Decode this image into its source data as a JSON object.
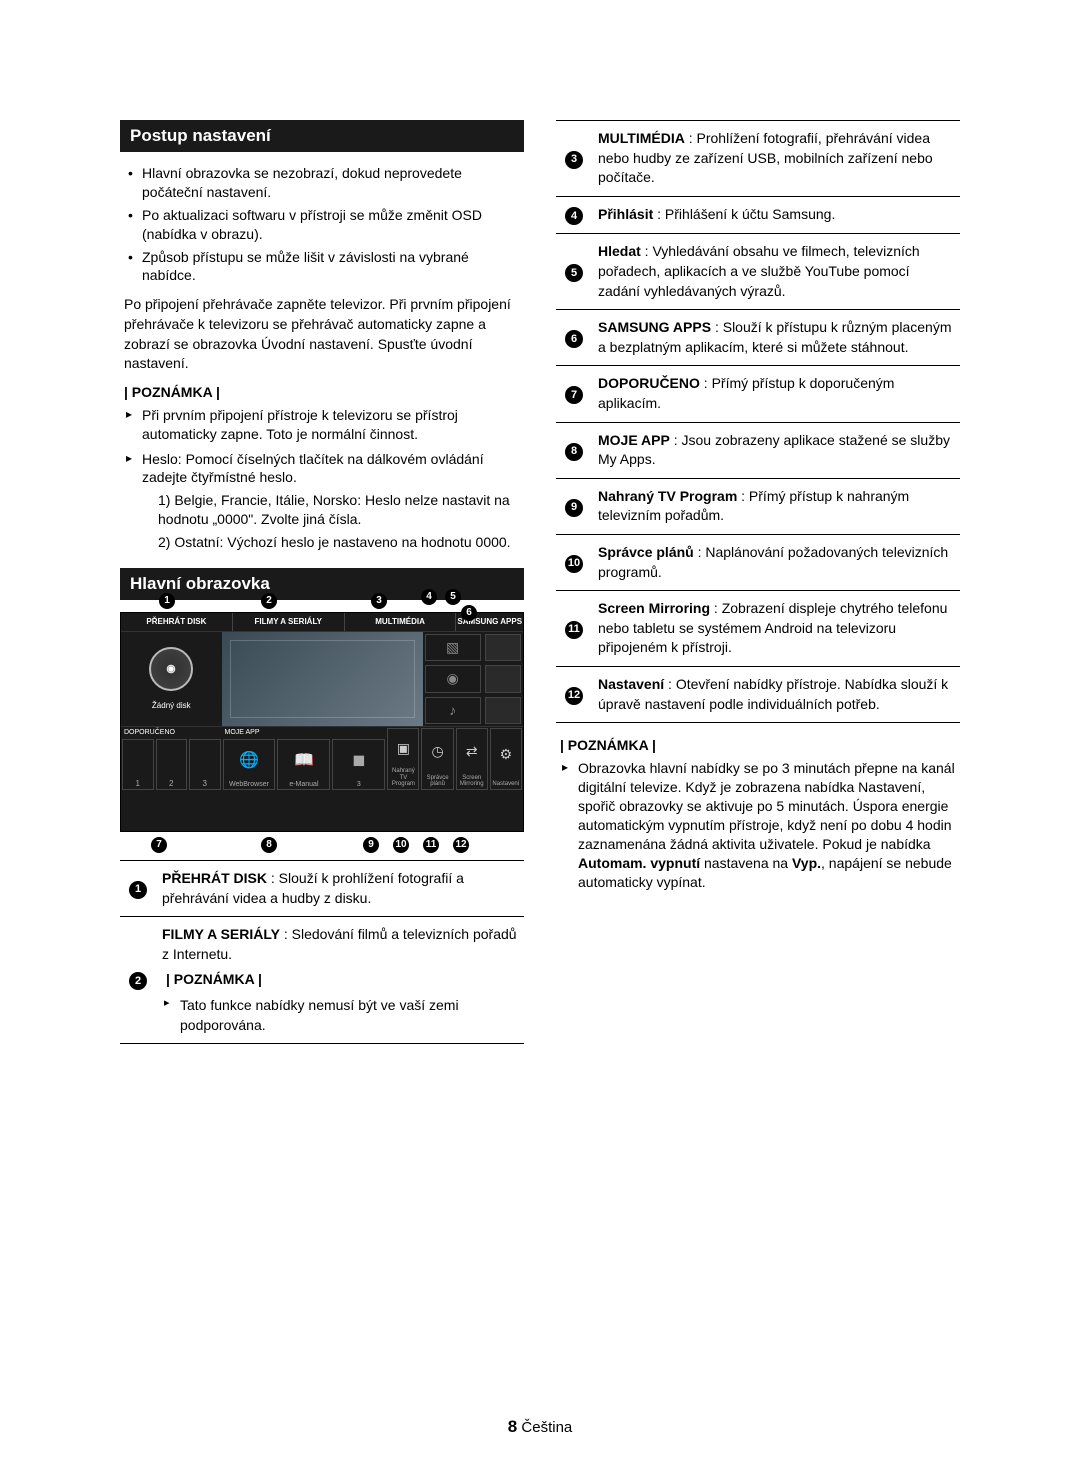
{
  "left": {
    "section1": {
      "title": "Postup nastavení",
      "bullets": [
        "Hlavní obrazovka se nezobrazí, dokud neprovedete počáteční nastavení.",
        "Po aktualizaci softwaru v přístroji se může změnit OSD (nabídka v obrazu).",
        "Způsob přístupu se může lišit v závislosti na vybrané nabídce."
      ],
      "plain": "Po připojení přehrávače zapněte televizor. Při prvním připojení přehrávače k televizoru se přehrávač automaticky zapne a zobrazí se obrazovka Úvodní nastavení. Spusťte úvodní nastavení.",
      "note_label": "| POZNÁMKA |",
      "notes": [
        "Při prvním připojení přístroje k televizoru se přístroj automaticky zapne. Toto je normální činnost.",
        "Heslo: Pomocí číselných tlačítek na dálkovém ovládání zadejte čtyřmístné heslo."
      ],
      "subnotes": [
        "1) Belgie, Francie, Itálie, Norsko: Heslo nelze nastavit na hodnotu „0000\". Zvolte jiná čísla.",
        "2) Ostatní: Výchozí heslo je nastaveno na hodnotu 0000."
      ]
    },
    "section2": {
      "title": "Hlavní obrazovka",
      "screen": {
        "headers": [
          "PŘEHRÁT DISK",
          "FILMY A SERIÁLY",
          "MULTIMÉDIA",
          "SAMSUNG APPS"
        ],
        "zadny": "Žádný disk",
        "rec_label": "DOPORUČENO",
        "myapp_label": "MOJE APP",
        "myapp_items": [
          "WebBrowser",
          "e-Manual",
          "3"
        ],
        "rec_items": [
          "1",
          "2",
          "3"
        ],
        "funcs": [
          "Nahraný TV Program",
          "Správce plánů",
          "Screen Mirroring",
          "Nastavení"
        ]
      },
      "defs": [
        {
          "n": "1",
          "html": "<b>PŘEHRÁT DISK</b> : Slouží k prohlížení fotografií a přehrávání videa a hudby z disku."
        },
        {
          "n": "2",
          "html": "<b>FILMY A SERIÁLY</b> : Sledování filmů a televizních pořadů z Internetu.<div class='inline-note note-label'>| POZNÁMKA |</div><div class='inline-arrow'>Tato funkce nabídky nemusí být ve vaší zemi podporována.</div>"
        }
      ]
    }
  },
  "right": {
    "defs": [
      {
        "n": "3",
        "html": "<b>MULTIMÉDIA</b> : Prohlížení fotografií, přehrávání videa nebo hudby ze zařízení USB, mobilních zařízení nebo počítače."
      },
      {
        "n": "4",
        "html": "<b>Přihlásit</b> : Přihlášení k účtu Samsung."
      },
      {
        "n": "5",
        "html": "<b>Hledat</b> : Vyhledávání obsahu ve filmech, televizních pořadech, aplikacích a ve službě YouTube pomocí zadání vyhledávaných výrazů."
      },
      {
        "n": "6",
        "html": "<b>SAMSUNG APPS</b> : Slouží k přístupu k různým placeným a bezplatným aplikacím, které si můžete stáhnout."
      },
      {
        "n": "7",
        "html": "<b>DOPORUČENO</b> : Přímý přístup k doporučeným aplikacím."
      },
      {
        "n": "8",
        "html": "<b>MOJE APP</b> : Jsou zobrazeny aplikace stažené se služby My Apps."
      },
      {
        "n": "9",
        "html": "<b>Nahraný TV Program</b> : Přímý přístup k nahraným televizním pořadům."
      },
      {
        "n": "10",
        "html": "<b>Správce plánů</b> : Naplánování požadovaných televizních programů."
      },
      {
        "n": "11",
        "html": "<b>Screen Mirroring</b> : Zobrazení displeje chytrého telefonu nebo tabletu se systémem Android na televizoru připojeném k přístroji."
      },
      {
        "n": "12",
        "html": "<b>Nastavení</b> : Otevření nabídky přístroje. Nabídka slouží k úpravě nastavení podle individuálních potřeb."
      }
    ],
    "note_label": "| POZNÁMKA |",
    "note_text": "Obrazovka hlavní nabídky se po 3 minutách přepne na kanál digitální televize. Když je zobrazena nabídka Nastavení, spořič obrazovky se aktivuje po 5 minutách. Úspora energie automatickým vypnutím přístroje, když není po dobu 4 hodin zaznamenána žádná aktivita uživatele. Pokud je nabídka <b>Automam. vypnutí</b> nastavena na <b>Vyp.</b>, napájení se nebude automaticky vypínat."
  },
  "footer": {
    "num": "8",
    "lang": "Čeština"
  },
  "colors": {
    "heading_bg": "#1a1a1a",
    "heading_fg": "#ffffff",
    "text": "#000000",
    "border": "#000000"
  }
}
